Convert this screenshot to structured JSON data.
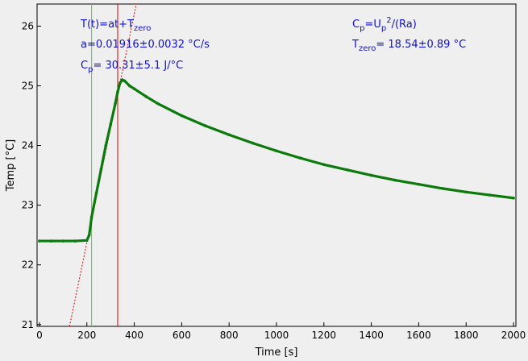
{
  "chart_data": {
    "type": "scatter",
    "xlabel": "Time [s]",
    "ylabel": "Temp [°C]",
    "xlim": [
      -10,
      2010
    ],
    "ylim": [
      20.97,
      26.37
    ],
    "xticks": [
      "0",
      "200",
      "400",
      "600",
      "800",
      "1000",
      "1200",
      "1400",
      "1600",
      "1800",
      "2000"
    ],
    "yticks": [
      "21",
      "22",
      "23",
      "24",
      "25",
      "26"
    ],
    "grid": false,
    "colors": {
      "data": "#0a7a0a",
      "fit": "#e00000",
      "start_marker": "#33dd33",
      "end_marker": "#e00000",
      "annotation": "#1010d0"
    },
    "series": [
      {
        "x": [
          0,
          50,
          100,
          150,
          200,
          210,
          220,
          240,
          260,
          280,
          300,
          320,
          330,
          340,
          350,
          360,
          380,
          400,
          450,
          500,
          600,
          700,
          800,
          900,
          1000,
          1100,
          1200,
          1300,
          1400,
          1500,
          1600,
          1700,
          1800,
          1900,
          2000
        ],
        "y": [
          22.4,
          22.4,
          22.4,
          22.4,
          22.41,
          22.5,
          22.8,
          23.2,
          23.6,
          24.0,
          24.35,
          24.7,
          24.9,
          25.05,
          25.1,
          25.08,
          25.0,
          24.95,
          24.82,
          24.7,
          24.5,
          24.33,
          24.18,
          24.04,
          23.91,
          23.79,
          23.68,
          23.59,
          23.5,
          23.42,
          23.35,
          23.28,
          23.22,
          23.17,
          23.12
        ]
      }
    ],
    "fit_line": {
      "slope": 0.01916,
      "intercept": 18.54
    },
    "markers": {
      "start_x": 220,
      "end_x": 330
    },
    "annotations": {
      "formula_main": "T(t)=at+T",
      "formula_sub": "zero",
      "slope_text": "a=0.01916±0.0032 °C/s",
      "cp_main": "C",
      "cp_sub": "p",
      "cp_value": "= 30.31±5.1 J/°C",
      "cp_def_main": "C",
      "cp_def_sub1": "p",
      "cp_def_mid": "=U",
      "cp_def_sub2": "p",
      "cp_def_sup": "2",
      "cp_def_tail": "/(Ra)",
      "tzero_main": "T",
      "tzero_sub": "zero",
      "tzero_value": "= 18.54±0.89 °C"
    }
  }
}
